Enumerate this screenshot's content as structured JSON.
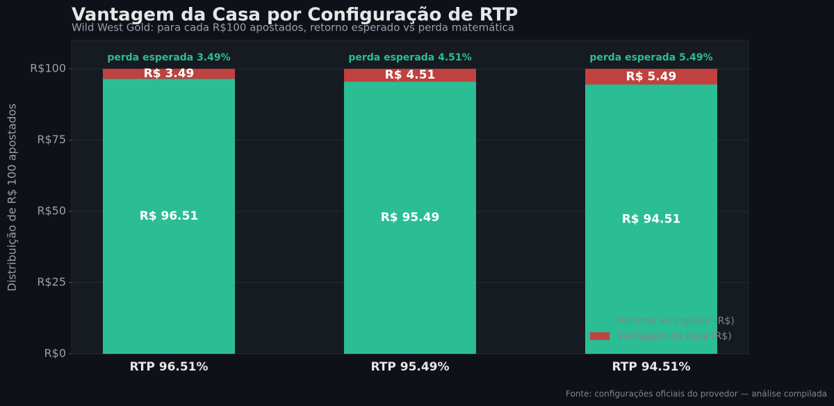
{
  "chart_data": {
    "type": "stacked-bar",
    "title": "Vantagem da Casa por Configuração de RTP",
    "subtitle": "Wild West Gold: para cada R$100 apostados, retorno esperado vs perda matemática",
    "y_label": "Distribuição de R$ 100 apostados",
    "source": "Fonte: configurações oficiais do provedor — análise compilada",
    "categories": [
      "RTP 96.51%",
      "RTP 95.49%",
      "RTP 94.51%"
    ],
    "series": [
      {
        "name": "Retorno ao jogador (R$)",
        "color": "#2bbd93",
        "values": [
          96.51,
          95.49,
          94.51
        ],
        "value_labels": [
          "R$ 96.51",
          "R$ 95.49",
          "R$ 94.51"
        ]
      },
      {
        "name": "Vantagem da casa (R$)",
        "color": "#c0413f",
        "values": [
          3.49,
          4.51,
          5.49
        ],
        "value_labels": [
          "R$ 3.49",
          "R$ 4.51",
          "R$ 5.49"
        ]
      }
    ],
    "annotations": [
      "perda esperada 3.49%",
      "perda esperada 4.51%",
      "perda esperada 5.49%"
    ],
    "ylim": [
      0,
      110
    ],
    "yticks": [
      {
        "value": 0,
        "label": "R$0"
      },
      {
        "value": 25,
        "label": "R$25"
      },
      {
        "value": 50,
        "label": "R$50"
      },
      {
        "value": 75,
        "label": "R$75"
      },
      {
        "value": 100,
        "label": "R$100"
      }
    ],
    "grid": true,
    "legend_position": "lower right"
  }
}
